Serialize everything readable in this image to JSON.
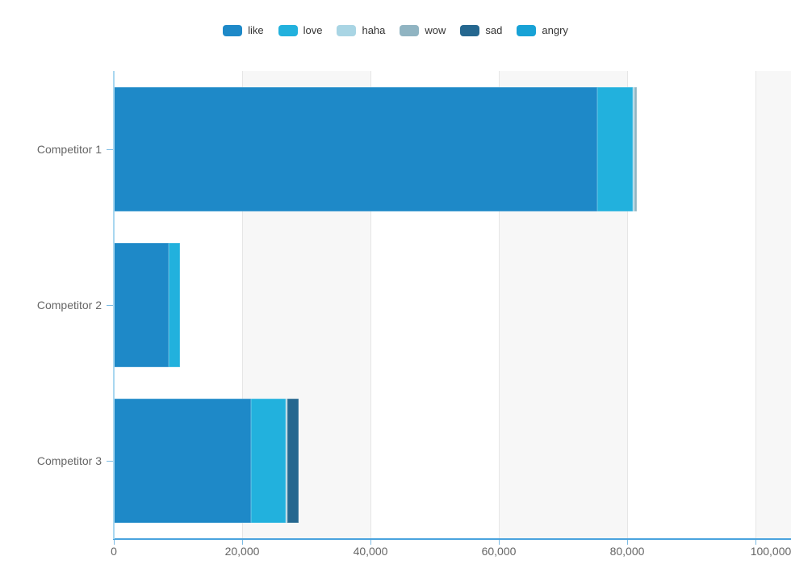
{
  "colors": {
    "background": "#ffffff",
    "axis_x": "#4aa3de",
    "axis_y": "#a9d7f0",
    "tick": "#7cbbe4",
    "gridline": "#e6e6e6",
    "band": "#f7f7f7",
    "axis_label": "#666666",
    "legend_text": "#333333"
  },
  "chart_data": {
    "type": "bar",
    "orientation": "horizontal",
    "stacked": true,
    "title": "",
    "xlabel": "",
    "ylabel": "",
    "grid": true,
    "legend_position": "top",
    "background_bands": "alternating",
    "xlim": [
      0,
      100000
    ],
    "x_ticks": [
      0,
      20000,
      40000,
      60000,
      80000,
      100000
    ],
    "x_tick_labels": [
      "0",
      "20,000",
      "40,000",
      "60,000",
      "80,000",
      "100,000"
    ],
    "categories": [
      "Competitor 1",
      "Competitor 2",
      "Competitor 3"
    ],
    "series": [
      {
        "name": "like",
        "color": "#1e89c8",
        "values": [
          75300,
          8600,
          21400
        ]
      },
      {
        "name": "love",
        "color": "#22b1dd",
        "values": [
          5600,
          1700,
          5400
        ]
      },
      {
        "name": "haha",
        "color": "#a9d5e4",
        "values": [
          200,
          0,
          100
        ]
      },
      {
        "name": "wow",
        "color": "#90b4c2",
        "values": [
          400,
          0,
          200
        ]
      },
      {
        "name": "sad",
        "color": "#25678f",
        "values": [
          0,
          0,
          1700
        ]
      },
      {
        "name": "angry",
        "color": "#18a2d6",
        "values": [
          0,
          0,
          0
        ]
      }
    ],
    "totals": [
      81500,
      10300,
      28800
    ]
  }
}
